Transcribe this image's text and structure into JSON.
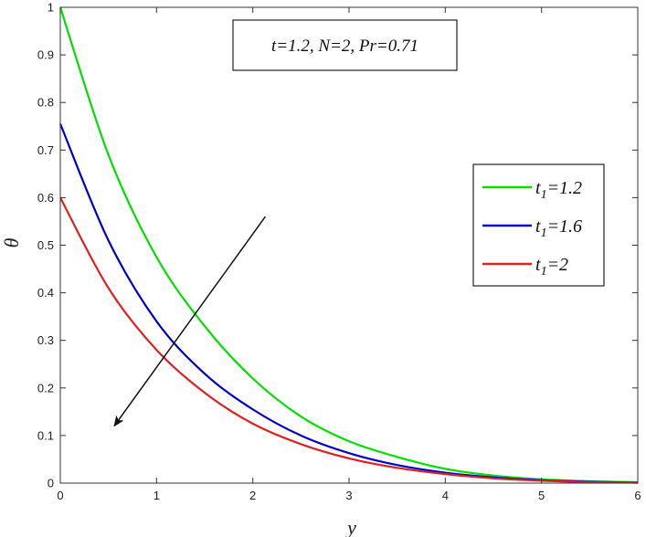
{
  "chart_data": {
    "type": "line",
    "xlabel": "y",
    "ylabel": "θ",
    "xlim": [
      0,
      6
    ],
    "ylim": [
      0,
      1
    ],
    "xticks": [
      "0",
      "1",
      "2",
      "3",
      "4",
      "5",
      "6"
    ],
    "yticks": [
      "0",
      "0.1",
      "0.2",
      "0.3",
      "0.4",
      "0.5",
      "0.6",
      "0.7",
      "0.8",
      "0.9",
      "1"
    ],
    "annotation": "t=1.2, N=2, Pr=0.71",
    "legend_position": "right",
    "grid": false,
    "series": [
      {
        "name_main": "t",
        "name_sub": "1",
        "name_rest": "=1.2",
        "color": "#00e000",
        "x": [
          0,
          0.5,
          1,
          1.5,
          2,
          2.5,
          3,
          3.5,
          4,
          4.5,
          5,
          5.5,
          6
        ],
        "y": [
          1.0,
          0.69,
          0.475,
          0.33,
          0.22,
          0.14,
          0.088,
          0.055,
          0.03,
          0.016,
          0.008,
          0.004,
          0.002
        ]
      },
      {
        "name_main": "t",
        "name_sub": "1",
        "name_rest": "=1.6",
        "color": "#0000cc",
        "x": [
          0,
          0.5,
          1,
          1.5,
          2,
          2.5,
          3,
          3.5,
          4,
          4.5,
          5,
          5.5,
          6
        ],
        "y": [
          0.755,
          0.51,
          0.34,
          0.23,
          0.155,
          0.1,
          0.063,
          0.038,
          0.022,
          0.012,
          0.006,
          0.003,
          0.001
        ]
      },
      {
        "name_main": "t",
        "name_sub": "1",
        "name_rest": "=2",
        "color": "#dd2222",
        "x": [
          0,
          0.5,
          1,
          1.5,
          2,
          2.5,
          3,
          3.5,
          4,
          4.5,
          5,
          5.5,
          6
        ],
        "y": [
          0.6,
          0.41,
          0.28,
          0.19,
          0.125,
          0.082,
          0.052,
          0.032,
          0.019,
          0.01,
          0.005,
          0.002,
          0.001
        ]
      }
    ],
    "arrow": {
      "from": [
        2.13,
        0.56
      ],
      "to": [
        0.56,
        0.12
      ]
    }
  }
}
